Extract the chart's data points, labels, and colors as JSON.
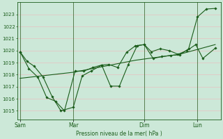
{
  "bg_color": "#cce8d8",
  "line_color": "#1a5c1a",
  "grid_color": "#e8c0c0",
  "axis_color": "#1a5c1a",
  "xlabel": "Pression niveau de la mer( hPa )",
  "ylabel_ticks": [
    1015,
    1016,
    1017,
    1018,
    1019,
    1020,
    1021,
    1022,
    1023
  ],
  "ylim": [
    1014.3,
    1024.0
  ],
  "xlim": [
    -0.15,
    11.3
  ],
  "day_labels": [
    "Sam",
    "Mar",
    "Dim",
    "Lun"
  ],
  "day_positions": [
    0,
    3,
    7,
    10
  ],
  "vline_positions": [
    0,
    3,
    7,
    10
  ],
  "series1_x": [
    0,
    0.4,
    0.8,
    1.3,
    1.8,
    2.3,
    3.0,
    3.5,
    4.0,
    4.6,
    5.0,
    5.5,
    6.0,
    6.5,
    7.0,
    7.4,
    7.9,
    8.4,
    8.9,
    9.4,
    9.9,
    10.3,
    11.0
  ],
  "series1_y": [
    1019.9,
    1019.1,
    1018.7,
    1017.8,
    1016.2,
    1015.0,
    1015.3,
    1017.9,
    1018.3,
    1018.8,
    1018.85,
    1018.6,
    1019.85,
    1020.4,
    1020.5,
    1019.9,
    1020.15,
    1020.0,
    1019.7,
    1020.0,
    1020.5,
    1019.35,
    1020.2
  ],
  "series2_x": [
    0,
    0.5,
    1.0,
    1.5,
    2.0,
    2.5,
    3.1,
    3.6,
    4.1,
    4.6,
    5.1,
    5.6,
    6.1,
    6.6,
    7.0,
    7.5,
    8.0,
    8.5,
    9.0,
    9.5,
    10.0,
    10.5,
    11.0
  ],
  "series2_y": [
    1019.9,
    1018.5,
    1017.8,
    1016.1,
    1015.8,
    1015.0,
    1018.3,
    1018.3,
    1018.6,
    1018.8,
    1017.05,
    1017.05,
    1018.85,
    1020.4,
    1020.5,
    1019.35,
    1019.5,
    1019.6,
    1019.65,
    1020.15,
    1022.8,
    1023.45,
    1023.5
  ],
  "series3_x": [
    0,
    3.0,
    6.5,
    9.0,
    11.0
  ],
  "series3_y": [
    1017.7,
    1018.2,
    1019.2,
    1019.7,
    1020.5
  ]
}
